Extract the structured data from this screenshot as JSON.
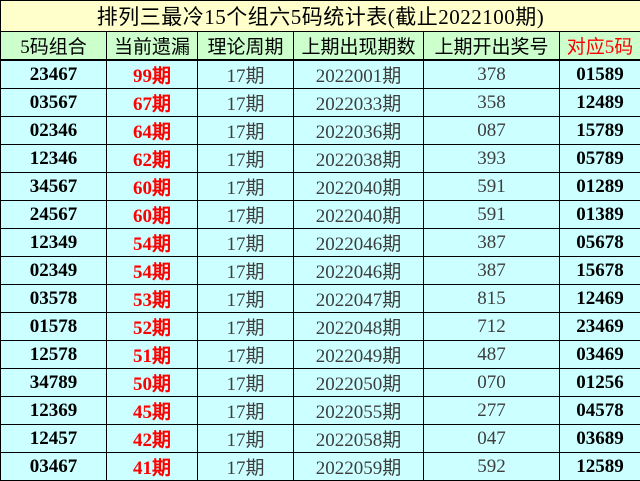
{
  "chart_data": {
    "type": "table",
    "title": "排列三最冷15个组六5码统计表(截止2022100期)",
    "columns": [
      "5码组合",
      "当前遗漏",
      "理论周期",
      "上期出现期数",
      "上期开出奖号",
      "对应5码"
    ],
    "rows": [
      [
        "23467",
        "99期",
        "17期",
        "2022001期",
        "378",
        "01589"
      ],
      [
        "03567",
        "67期",
        "17期",
        "2022033期",
        "358",
        "12489"
      ],
      [
        "02346",
        "64期",
        "17期",
        "2022036期",
        "087",
        "15789"
      ],
      [
        "12346",
        "62期",
        "17期",
        "2022038期",
        "393",
        "05789"
      ],
      [
        "34567",
        "60期",
        "17期",
        "2022040期",
        "591",
        "01289"
      ],
      [
        "24567",
        "60期",
        "17期",
        "2022040期",
        "591",
        "01389"
      ],
      [
        "12349",
        "54期",
        "17期",
        "2022046期",
        "387",
        "05678"
      ],
      [
        "02349",
        "54期",
        "17期",
        "2022046期",
        "387",
        "15678"
      ],
      [
        "03578",
        "53期",
        "17期",
        "2022047期",
        "815",
        "12469"
      ],
      [
        "01578",
        "52期",
        "17期",
        "2022048期",
        "712",
        "23469"
      ],
      [
        "12578",
        "51期",
        "17期",
        "2022049期",
        "487",
        "03469"
      ],
      [
        "34789",
        "50期",
        "17期",
        "2022050期",
        "070",
        "01256"
      ],
      [
        "12369",
        "45期",
        "17期",
        "2022055期",
        "277",
        "04578"
      ],
      [
        "12457",
        "42期",
        "17期",
        "2022058期",
        "047",
        "03689"
      ],
      [
        "03467",
        "41期",
        "17期",
        "2022059期",
        "592",
        "12589"
      ]
    ],
    "layout_hints": {
      "row_count": 15,
      "highlighted_columns": [
        "当前遗漏",
        "对应5码"
      ]
    }
  },
  "colors": {
    "title_bg": "#FFFFCC",
    "header_bg": "#CCFFCC",
    "cell_bg": "#CCFFFF",
    "highlight_text": "#FF0000",
    "primary_text": "#000000",
    "muted_text": "#3D3D3D",
    "border": "#000000"
  }
}
